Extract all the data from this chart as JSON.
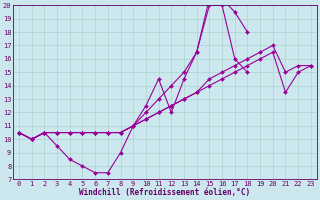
{
  "title": "",
  "xlabel": "Windchill (Refroidissement éolien,°C)",
  "ylabel": "",
  "bg_color": "#cce8ee",
  "line_color": "#990099",
  "grid_color": "#aad4cc",
  "text_color": "#660066",
  "xlim": [
    -0.5,
    23.5
  ],
  "ylim": [
    7,
    20
  ],
  "xticks": [
    0,
    1,
    2,
    3,
    4,
    5,
    6,
    7,
    8,
    9,
    10,
    11,
    12,
    13,
    14,
    15,
    16,
    17,
    18,
    19,
    20,
    21,
    22,
    23
  ],
  "yticks": [
    7,
    8,
    9,
    10,
    11,
    12,
    13,
    14,
    15,
    16,
    17,
    18,
    19,
    20
  ],
  "series": [
    {
      "name": "line1_wavy",
      "x": [
        0,
        1,
        2,
        3,
        4,
        5,
        6,
        7,
        8,
        9,
        10,
        11,
        12,
        13,
        14,
        15,
        16,
        17,
        18,
        19,
        20,
        21,
        22,
        23
      ],
      "y": [
        10.5,
        10.0,
        10.5,
        9.5,
        8.5,
        8.0,
        7.5,
        7.5,
        9.0,
        11.0,
        12.5,
        14.5,
        12.0,
        14.5,
        16.5,
        20.5,
        20.5,
        19.5,
        18.0,
        null,
        null,
        null,
        null,
        null
      ]
    },
    {
      "name": "line2_arch",
      "x": [
        0,
        1,
        2,
        3,
        4,
        5,
        6,
        7,
        8,
        9,
        10,
        11,
        12,
        13,
        14,
        15,
        16,
        17,
        18,
        19,
        20,
        21,
        22,
        23
      ],
      "y": [
        10.5,
        10.0,
        10.5,
        10.5,
        10.5,
        10.5,
        10.5,
        10.5,
        10.5,
        11.0,
        12.0,
        13.0,
        14.0,
        15.0,
        16.5,
        20.0,
        20.0,
        16.0,
        15.0,
        null,
        null,
        null,
        null,
        null
      ]
    },
    {
      "name": "line3_linear1",
      "x": [
        0,
        1,
        2,
        3,
        4,
        5,
        6,
        7,
        8,
        9,
        10,
        11,
        12,
        13,
        14,
        15,
        16,
        17,
        18,
        19,
        20,
        21,
        22,
        23
      ],
      "y": [
        10.5,
        10.0,
        10.5,
        10.5,
        10.5,
        10.5,
        10.5,
        10.5,
        10.5,
        11.0,
        11.5,
        12.0,
        12.5,
        13.0,
        13.5,
        14.5,
        15.0,
        15.5,
        16.0,
        16.5,
        17.0,
        15.0,
        15.5,
        15.5
      ]
    },
    {
      "name": "line4_linear2",
      "x": [
        0,
        1,
        2,
        3,
        4,
        5,
        6,
        7,
        8,
        9,
        10,
        11,
        12,
        13,
        14,
        15,
        16,
        17,
        18,
        19,
        20,
        21,
        22,
        23
      ],
      "y": [
        10.5,
        10.0,
        10.5,
        10.5,
        10.5,
        10.5,
        10.5,
        10.5,
        10.5,
        11.0,
        11.5,
        12.0,
        12.5,
        13.0,
        13.5,
        14.0,
        14.5,
        15.0,
        15.5,
        16.0,
        16.5,
        13.5,
        15.0,
        15.5
      ]
    }
  ]
}
